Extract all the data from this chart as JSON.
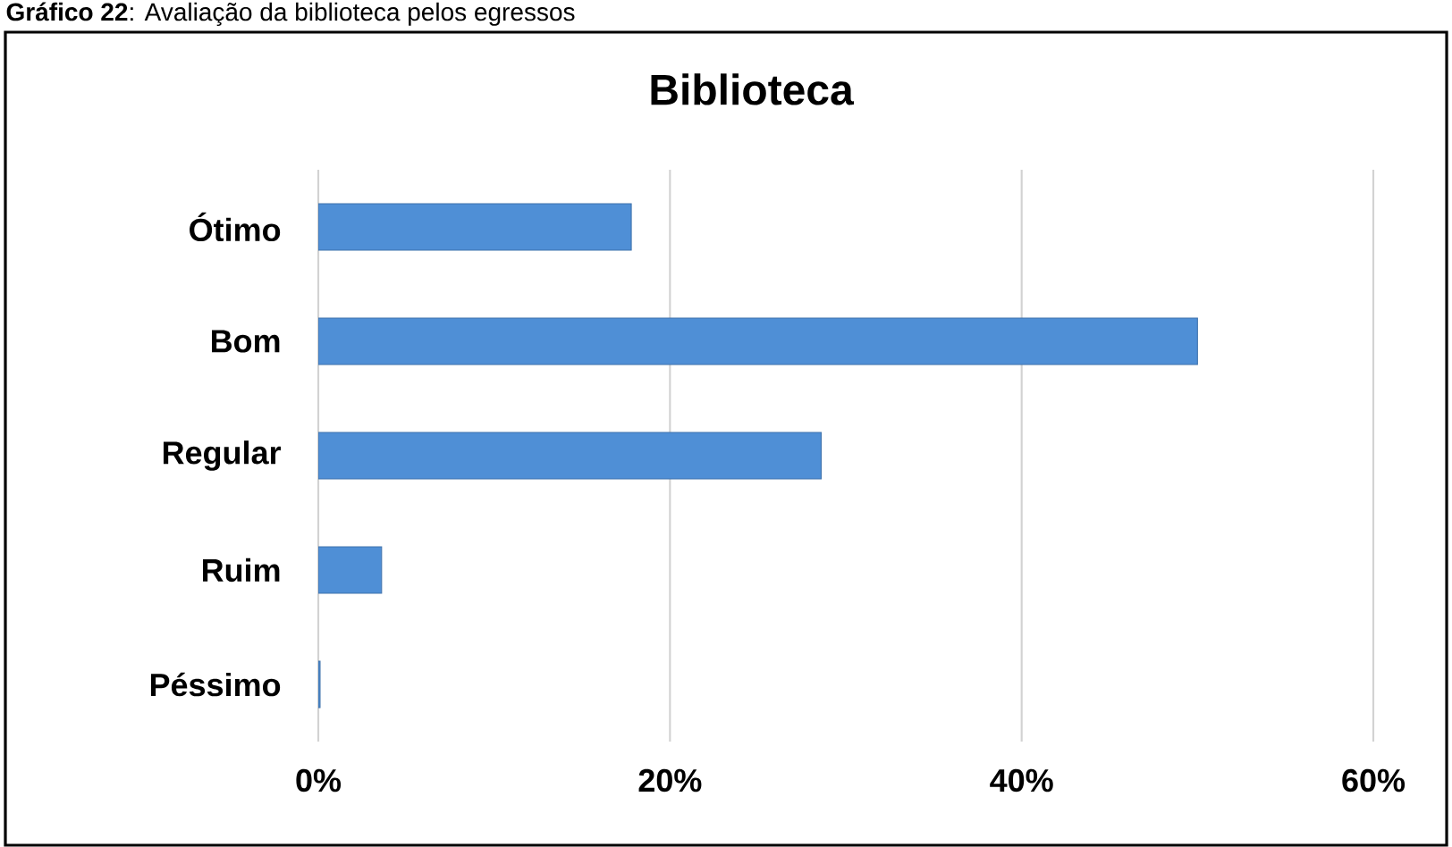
{
  "chart_data": {
    "type": "bar",
    "orientation": "horizontal",
    "title": "Biblioteca",
    "annotations": [
      "**Gráfico 22**: Avaliação da biblioteca pelos egressos"
    ],
    "categories": [
      "Ótimo",
      "Bom",
      "Regular",
      "Ruim",
      "Péssimo"
    ],
    "values": [
      17.8,
      50,
      28.6,
      3.6,
      0.1
    ],
    "color": "#4f8fd6",
    "xlim": [
      0,
      60
    ],
    "xticks": [
      {
        "value": 0,
        "label": "0%"
      },
      {
        "value": 20,
        "label": "20%"
      },
      {
        "value": 40,
        "label": "40%"
      },
      {
        "value": 60,
        "label": "60%"
      }
    ],
    "grid": "x"
  }
}
